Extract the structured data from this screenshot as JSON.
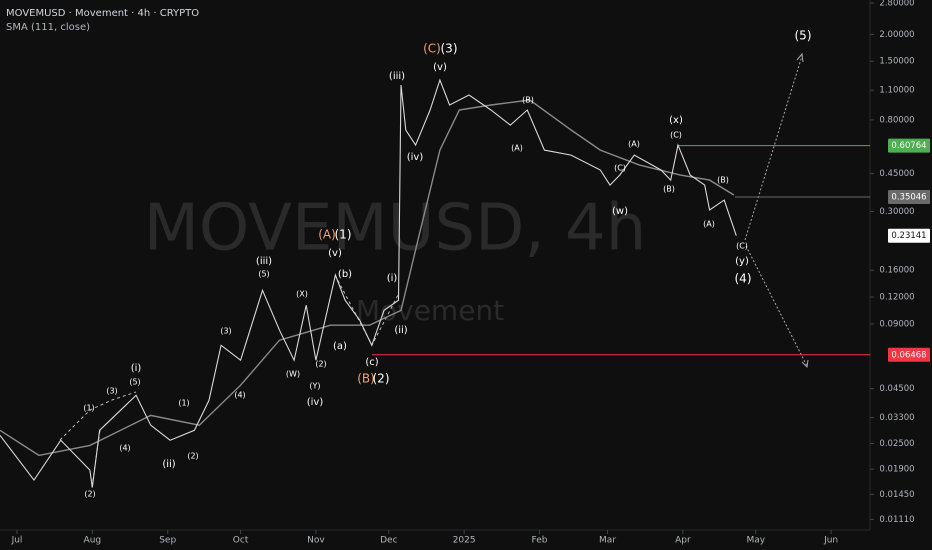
{
  "chart_data": {
    "type": "line",
    "title": "MOVEMUSD · Movement · 4h · CRYPTO",
    "watermark": "MOVEMUSD, 4h",
    "watermark_sub": "Movement",
    "log_scale": true,
    "grid": false,
    "xlim": [
      -7,
      351
    ],
    "ylim": [
      0.0099,
      2.89
    ],
    "xticks": [
      {
        "value": 0,
        "label": "Jul"
      },
      {
        "value": 31,
        "label": "Aug"
      },
      {
        "value": 62,
        "label": "Sep"
      },
      {
        "value": 92,
        "label": "Oct"
      },
      {
        "value": 123,
        "label": "Nov"
      },
      {
        "value": 153,
        "label": "Dec"
      },
      {
        "value": 184,
        "label": "2025"
      },
      {
        "value": 215,
        "label": "Feb"
      },
      {
        "value": 243,
        "label": "Mar"
      },
      {
        "value": 274,
        "label": "Apr"
      },
      {
        "value": 304,
        "label": "May"
      },
      {
        "value": 335,
        "label": "Jun"
      }
    ],
    "yticks": [
      {
        "value": 2.8,
        "label": "2.80000"
      },
      {
        "value": 2.0,
        "label": "2.00000"
      },
      {
        "value": 1.5,
        "label": "1.50000"
      },
      {
        "value": 1.1,
        "label": "1.10000"
      },
      {
        "value": 0.8,
        "label": "0.80000"
      },
      {
        "value": 0.45,
        "label": "0.45000"
      },
      {
        "value": 0.3,
        "label": "0.30000"
      },
      {
        "value": 0.16,
        "label": "0.16000"
      },
      {
        "value": 0.12,
        "label": "0.12000"
      },
      {
        "value": 0.09,
        "label": "0.09000"
      },
      {
        "value": 0.045,
        "label": "0.04500"
      },
      {
        "value": 0.033,
        "label": "0.03300"
      },
      {
        "value": 0.025,
        "label": "0.02500"
      },
      {
        "value": 0.019,
        "label": "0.01900"
      },
      {
        "value": 0.0145,
        "label": "0.01450"
      },
      {
        "value": 0.0111,
        "label": "0.01110"
      }
    ],
    "series": [
      {
        "color": "#d8d8d8",
        "x": [
          -7,
          7,
          18,
          30,
          31,
          34,
          49,
          55,
          63,
          73,
          79,
          84,
          92,
          101,
          108,
          114,
          119,
          123,
          131,
          135,
          141,
          146,
          151,
          157,
          158,
          160,
          164,
          170,
          174,
          178,
          186,
          195,
          203,
          210,
          217,
          228,
          240,
          244,
          248,
          254,
          265,
          269,
          272,
          277,
          283,
          285,
          291,
          296
        ],
        "values": [
          0.0273,
          0.0169,
          0.0259,
          0.0188,
          0.0156,
          0.0288,
          0.0419,
          0.0304,
          0.0259,
          0.0288,
          0.0397,
          0.0716,
          0.061,
          0.129,
          0.0841,
          0.061,
          0.11,
          0.061,
          0.152,
          0.116,
          0.0937,
          0.0716,
          0.104,
          0.116,
          1.163,
          0.718,
          0.611,
          0.89,
          1.227,
          0.939,
          1.045,
          0.89,
          0.757,
          0.89,
          0.579,
          0.549,
          0.468,
          0.398,
          0.443,
          0.549,
          0.468,
          0.42,
          0.611,
          0.443,
          0.398,
          0.305,
          0.339,
          0.2314
        ]
      },
      {
        "name": "SMA (111, close)",
        "color": "#8a8a8a",
        "x": [
          -7,
          9,
          30,
          55,
          75,
          92,
          108,
          129,
          145,
          158,
          166,
          174,
          182,
          195,
          211,
          228,
          240,
          256,
          273,
          285,
          295
        ],
        "values": [
          0.0288,
          0.022,
          0.0245,
          0.0338,
          0.0304,
          0.0467,
          0.0756,
          0.0888,
          0.0888,
          0.104,
          0.246,
          0.579,
          0.89,
          0.939,
          0.99,
          0.718,
          0.579,
          0.494,
          0.443,
          0.42,
          0.358
        ]
      }
    ],
    "levels": [
      {
        "value": 0.60764,
        "color": "#4caf50"
      },
      {
        "value": 0.35046,
        "color": "#6a6a6a"
      },
      {
        "value": 0.23141,
        "color": "#ffffff"
      },
      {
        "value": 0.06468,
        "color": "#f23645"
      }
    ],
    "annotations": [
      {
        "text": "(C)",
        "color": "#f0a06a"
      },
      {
        "text": "(3)",
        "color": "#ffffff"
      },
      {
        "text": "(v)",
        "color": "#ffffff"
      },
      {
        "text": "(iii)",
        "color": "#ffffff"
      },
      {
        "text": "(iv)",
        "color": "#ffffff"
      },
      {
        "text": "(5)",
        "color": "#ffffff"
      },
      {
        "text": "(x)",
        "color": "#ffffff"
      },
      {
        "text": "(C)",
        "color": "#ffffff"
      },
      {
        "text": "(B)",
        "color": "#ffffff"
      },
      {
        "text": "(A)",
        "color": "#ffffff"
      },
      {
        "text": "(A)",
        "color": "#ffffff"
      },
      {
        "text": "(C)",
        "color": "#ffffff"
      },
      {
        "text": "(w)",
        "color": "#ffffff"
      },
      {
        "text": "(B)",
        "color": "#ffffff"
      },
      {
        "text": "(B)",
        "color": "#ffffff"
      },
      {
        "text": "(A)",
        "color": "#ffffff"
      },
      {
        "text": "(C)",
        "color": "#ffffff"
      },
      {
        "text": "(y)",
        "color": "#ffffff"
      },
      {
        "text": "(4)",
        "color": "#ffffff"
      },
      {
        "text": "(A)",
        "color": "#f0a06a"
      },
      {
        "text": "(1)",
        "color": "#ffffff"
      },
      {
        "text": "(v)",
        "color": "#ffffff"
      },
      {
        "text": "(iii)",
        "color": "#ffffff"
      },
      {
        "text": "(5)",
        "color": "#ffffff"
      },
      {
        "text": "(3)",
        "color": "#ffffff"
      },
      {
        "text": "(4)",
        "color": "#ffffff"
      },
      {
        "text": "(X)",
        "color": "#ffffff"
      },
      {
        "text": "(W)",
        "color": "#ffffff"
      },
      {
        "text": "(Y)",
        "color": "#ffffff"
      },
      {
        "text": "(iv)",
        "color": "#ffffff"
      },
      {
        "text": "(2)",
        "color": "#ffffff"
      },
      {
        "text": "(a)",
        "color": "#ffffff"
      },
      {
        "text": "(b)",
        "color": "#ffffff"
      },
      {
        "text": "(c)",
        "color": "#ffffff"
      },
      {
        "text": "(B)",
        "color": "#f0a06a"
      },
      {
        "text": "(2)",
        "color": "#ffffff"
      },
      {
        "text": "(i)",
        "color": "#ffffff"
      },
      {
        "text": "(ii)",
        "color": "#ffffff"
      },
      {
        "text": "(i)",
        "color": "#ffffff"
      },
      {
        "text": "(5)",
        "color": "#ffffff"
      },
      {
        "text": "(3)",
        "color": "#ffffff"
      },
      {
        "text": "(1)",
        "color": "#ffffff"
      },
      {
        "text": "(4)",
        "color": "#ffffff"
      },
      {
        "text": "(2)",
        "color": "#ffffff"
      },
      {
        "text": "(ii)",
        "color": "#ffffff"
      },
      {
        "text": "(1)",
        "color": "#ffffff"
      },
      {
        "text": "(2)",
        "color": "#ffffff"
      }
    ]
  }
}
